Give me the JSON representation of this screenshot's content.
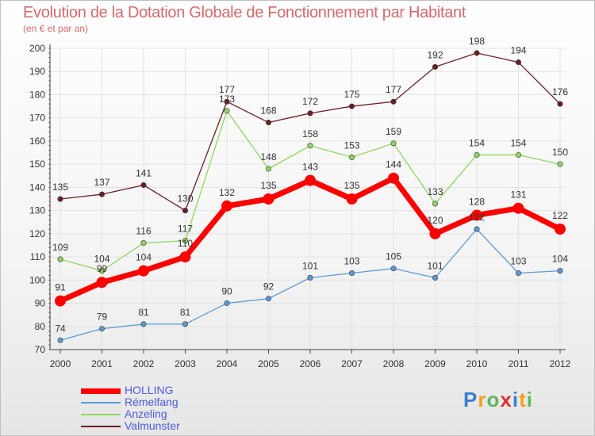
{
  "chart_data": {
    "type": "line",
    "title": "Evolution de la Dotation Globale de Fonctionnement par Habitant",
    "subtitle": "(en € et par an)",
    "xlabel": "",
    "ylabel": "",
    "ylim": [
      70,
      200
    ],
    "yticks": [
      70,
      80,
      90,
      100,
      110,
      120,
      130,
      140,
      150,
      160,
      170,
      180,
      190,
      200
    ],
    "categories": [
      "2000",
      "2001",
      "2002",
      "2003",
      "2004",
      "2005",
      "2006",
      "2007",
      "2008",
      "2009",
      "2010",
      "2011",
      "2012"
    ],
    "grid": true,
    "series": [
      {
        "name": "Valmunster",
        "color": "#6b1e24",
        "values": [
          135,
          137,
          141,
          130,
          177,
          168,
          172,
          175,
          177,
          192,
          198,
          194,
          176
        ]
      },
      {
        "name": "Anzeling",
        "color": "#8fd65e",
        "values": [
          109,
          104,
          116,
          117,
          173,
          148,
          158,
          153,
          159,
          133,
          154,
          154,
          150
        ]
      },
      {
        "name": "Rémelfang",
        "color": "#5b9bd5",
        "values": [
          74,
          79,
          81,
          81,
          90,
          92,
          101,
          103,
          105,
          101,
          122,
          103,
          104
        ]
      },
      {
        "name": "HOLLING",
        "color": "#ff0000",
        "values": [
          91,
          99,
          104,
          110,
          132,
          135,
          143,
          135,
          144,
          120,
          128,
          131,
          122
        ]
      }
    ]
  },
  "brand": {
    "letters": [
      "P",
      "r",
      "o",
      "x",
      "i",
      "t",
      "i"
    ],
    "colors": [
      "#3a7fd5",
      "#f0a020",
      "#5cb85c",
      "#e03030",
      "#3a7fd5",
      "#f0a020",
      "#5cb85c"
    ]
  }
}
